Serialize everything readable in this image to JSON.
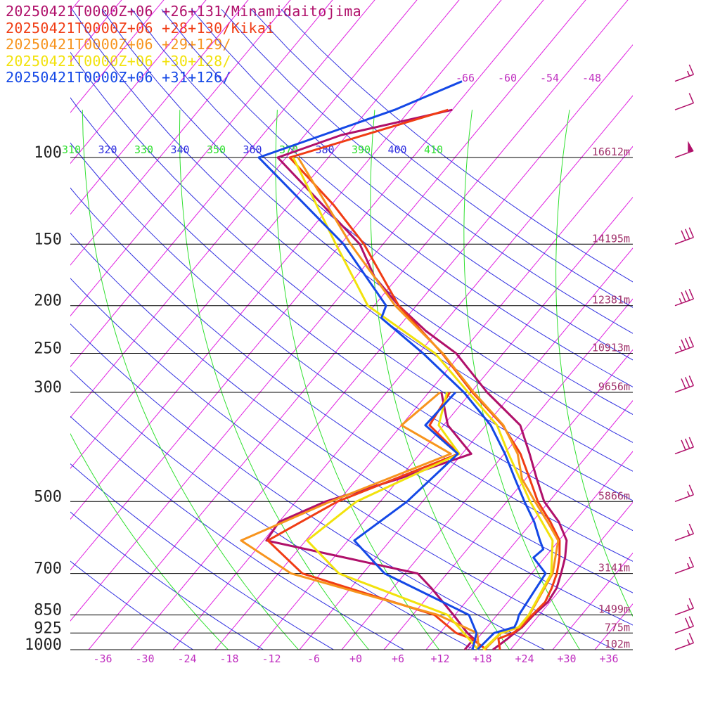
{
  "legend": [
    {
      "label": "20250421T0000Z+06 +26+131/Minamidaitojima",
      "color": "#b0106a"
    },
    {
      "label": "20250421T0000Z+06 +28+130/Kikai",
      "color": "#f03c14"
    },
    {
      "label": "20250421T0000Z+06 +29+129/",
      "color": "#f7941d"
    },
    {
      "label": "20250421T0000Z+06 +30+128/",
      "color": "#f2e20c"
    },
    {
      "label": "20250421T0000Z+06 +31+126/",
      "color": "#1448e6"
    }
  ],
  "chart_data": {
    "type": "line",
    "pressure_levels": [
      100,
      150,
      200,
      250,
      300,
      500,
      700,
      850,
      925,
      1000
    ],
    "pressure_labels": [
      "100",
      "150",
      "200",
      "250",
      "300",
      "500",
      "700",
      "850",
      "925",
      "1000"
    ],
    "heights": [
      {
        "p": 100,
        "label": "16612m"
      },
      {
        "p": 150,
        "label": "14195m"
      },
      {
        "p": 200,
        "label": "12381m"
      },
      {
        "p": 250,
        "label": "10913m"
      },
      {
        "p": 300,
        "label": "9656m"
      },
      {
        "p": 500,
        "label": "5866m"
      },
      {
        "p": 700,
        "label": "3141m"
      },
      {
        "p": 850,
        "label": "1499m"
      },
      {
        "p": 925,
        "label": "775m"
      },
      {
        "p": 1000,
        "label": "102m"
      }
    ],
    "temperature_ticks": [
      -36,
      -30,
      -24,
      -18,
      -12,
      -6,
      0,
      6,
      12,
      18,
      24,
      30,
      36
    ],
    "temperature_tick_labels": [
      "-36",
      "-30",
      "-24",
      "-18",
      "-12",
      "-6",
      "+0",
      "+6",
      "+12",
      "+18",
      "+24",
      "+30",
      "+36"
    ],
    "isotherm_labels": [
      "-66",
      "-60",
      "-54",
      "-48"
    ],
    "theta_labels": [
      "310",
      "320",
      "330",
      "340",
      "350",
      "360",
      "370",
      "380",
      "390",
      "400",
      "410"
    ],
    "xlim": [
      -40,
      40
    ],
    "colors": {
      "isotherm": "#e020e0",
      "theta": "#3030e0",
      "theta_e": "#30e030",
      "pressure_line": "#000000",
      "label": "#c030c0",
      "height": "#a0306a"
    },
    "series": [
      {
        "name": "20250421T0000Z+06 +26+131/Minamidaitojima",
        "color": "#b0106a",
        "temperature": [
          [
            1000,
            19.5
          ],
          [
            950,
            20.3
          ],
          [
            925,
            20.6
          ],
          [
            900,
            21.0
          ],
          [
            850,
            21.2
          ],
          [
            800,
            21.7
          ],
          [
            750,
            21.3
          ],
          [
            700,
            20.2
          ],
          [
            650,
            18.9
          ],
          [
            600,
            17.1
          ],
          [
            550,
            13.8
          ],
          [
            500,
            9.3
          ],
          [
            450,
            5.6
          ],
          [
            400,
            1.6
          ],
          [
            350,
            -3.1
          ],
          [
            300,
            -11.7
          ],
          [
            250,
            -20.7
          ],
          [
            225,
            -27.7
          ],
          [
            200,
            -34.5
          ],
          [
            175,
            -41.3
          ],
          [
            150,
            -47.3
          ],
          [
            100,
            -69.2
          ],
          [
            90,
            -62.8
          ],
          [
            80,
            -50.0
          ]
        ],
        "dewpoint": [
          [
            1000,
            15.5
          ],
          [
            950,
            15.5
          ],
          [
            925,
            13.9
          ],
          [
            850,
            9.8
          ],
          [
            750,
            3.5
          ],
          [
            700,
            -0.2
          ],
          [
            600,
            -25.6
          ],
          [
            550,
            -26.0
          ],
          [
            500,
            -21.8
          ],
          [
            450,
            -14.1
          ],
          [
            400,
            -6.7
          ],
          [
            350,
            -13.4
          ],
          [
            300,
            -18.2
          ]
        ]
      },
      {
        "name": "20250421T0000Z+06 +28+130/Kikai",
        "color": "#f03c14",
        "temperature": [
          [
            1000,
            20.5
          ],
          [
            950,
            19.0
          ],
          [
            925,
            20.4
          ],
          [
            900,
            20.8
          ],
          [
            850,
            21.0
          ],
          [
            800,
            21.3
          ],
          [
            750,
            20.6
          ],
          [
            700,
            19.6
          ],
          [
            650,
            18.1
          ],
          [
            600,
            16.1
          ],
          [
            550,
            12.6
          ],
          [
            500,
            8.4
          ],
          [
            450,
            4.6
          ],
          [
            400,
            0.3
          ],
          [
            350,
            -5.6
          ],
          [
            300,
            -13.8
          ],
          [
            250,
            -22.7
          ],
          [
            200,
            -34.5
          ],
          [
            150,
            -46.7
          ],
          [
            125,
            -55.6
          ],
          [
            100,
            -67.5
          ],
          [
            80,
            -50.6
          ]
        ],
        "dewpoint": [
          [
            1000,
            18.6
          ],
          [
            950,
            15.2
          ],
          [
            925,
            12.3
          ],
          [
            850,
            7.1
          ],
          [
            700,
            -16.6
          ],
          [
            600,
            -25.4
          ],
          [
            500,
            -20.1
          ],
          [
            400,
            -8.5
          ],
          [
            350,
            -16.0
          ],
          [
            300,
            -17.0
          ]
        ]
      },
      {
        "name": "20250421T0000Z+06 +29+129/",
        "color": "#f7941d",
        "temperature": [
          [
            1000,
            18.3
          ],
          [
            925,
            18.7
          ],
          [
            900,
            20.6
          ],
          [
            850,
            20.6
          ],
          [
            700,
            19.0
          ],
          [
            600,
            15.9
          ],
          [
            550,
            12.2
          ],
          [
            500,
            8.0
          ],
          [
            450,
            3.5
          ],
          [
            400,
            -0.1
          ],
          [
            350,
            -5.5
          ],
          [
            300,
            -13.6
          ],
          [
            250,
            -22.6
          ],
          [
            200,
            -35.0
          ],
          [
            150,
            -48.6
          ],
          [
            100,
            -66.3
          ]
        ],
        "dewpoint": [
          [
            1000,
            17.5
          ],
          [
            925,
            15.3
          ],
          [
            850,
            7.6
          ],
          [
            700,
            -18.2
          ],
          [
            600,
            -29.2
          ],
          [
            500,
            -21.1
          ],
          [
            400,
            -9.6
          ],
          [
            350,
            -20.0
          ],
          [
            300,
            -18.4
          ]
        ]
      },
      {
        "name": "20250421T0000Z+06 +30+128/",
        "color": "#f2e20c",
        "temperature": [
          [
            1000,
            18.1
          ],
          [
            925,
            18.6
          ],
          [
            900,
            20.5
          ],
          [
            850,
            20.5
          ],
          [
            700,
            18.8
          ],
          [
            600,
            15.1
          ],
          [
            550,
            11.4
          ],
          [
            500,
            7.3
          ],
          [
            450,
            3.2
          ],
          [
            400,
            -1.4
          ],
          [
            350,
            -6.4
          ],
          [
            300,
            -14.4
          ],
          [
            250,
            -23.7
          ],
          [
            200,
            -38.9
          ],
          [
            150,
            -50.7
          ],
          [
            100,
            -67.0
          ]
        ],
        "dewpoint": [
          [
            1000,
            17.4
          ],
          [
            925,
            13.4
          ],
          [
            850,
            9.0
          ],
          [
            700,
            -11.4
          ],
          [
            600,
            -19.8
          ],
          [
            500,
            -17.4
          ],
          [
            400,
            -8.4
          ],
          [
            350,
            -14.7
          ],
          [
            300,
            -17.4
          ]
        ]
      },
      {
        "name": "20250421T0000Z+06 +31+126/",
        "color": "#1448e6",
        "temperature": [
          [
            1000,
            17.3
          ],
          [
            925,
            17.7
          ],
          [
            900,
            19.9
          ],
          [
            875,
            19.6
          ],
          [
            850,
            19.1
          ],
          [
            700,
            18.0
          ],
          [
            650,
            14.4
          ],
          [
            625,
            14.8
          ],
          [
            600,
            13.3
          ],
          [
            550,
            10.3
          ],
          [
            500,
            6.5
          ],
          [
            450,
            2.5
          ],
          [
            400,
            -1.9
          ],
          [
            350,
            -7.3
          ],
          [
            300,
            -15.0
          ],
          [
            250,
            -25.4
          ],
          [
            212,
            -35.5
          ],
          [
            200,
            -36.3
          ],
          [
            150,
            -49.6
          ],
          [
            100,
            -71.9
          ],
          [
            80,
            -58.2
          ],
          [
            70,
            -52.0
          ]
        ],
        "dewpoint": [
          [
            1000,
            16.6
          ],
          [
            925,
            15.2
          ],
          [
            850,
            12.0
          ],
          [
            700,
            -4.9
          ],
          [
            600,
            -13.1
          ],
          [
            500,
            -10.2
          ],
          [
            400,
            -8.6
          ],
          [
            350,
            -16.6
          ],
          [
            300,
            -16.2
          ]
        ]
      }
    ],
    "wind_barbs": [
      {
        "p": 70,
        "speed": 15,
        "color": "#b0106a"
      },
      {
        "p": 80,
        "speed": 10,
        "color": "#b0106a"
      },
      {
        "p": 100,
        "speed": 50,
        "color": "#b0106a"
      },
      {
        "p": 150,
        "speed": 30,
        "color": "#b0106a"
      },
      {
        "p": 200,
        "speed": 35,
        "color": "#b0106a"
      },
      {
        "p": 250,
        "speed": 35,
        "color": "#b0106a"
      },
      {
        "p": 300,
        "speed": 30,
        "color": "#b0106a"
      },
      {
        "p": 400,
        "speed": 30,
        "color": "#b0106a"
      },
      {
        "p": 500,
        "speed": 15,
        "color": "#b0106a"
      },
      {
        "p": 600,
        "speed": 15,
        "color": "#b0106a"
      },
      {
        "p": 700,
        "speed": 15,
        "color": "#b0106a"
      },
      {
        "p": 850,
        "speed": 15,
        "color": "#b0106a"
      },
      {
        "p": 925,
        "speed": 20,
        "color": "#b0106a"
      },
      {
        "p": 1000,
        "speed": 15,
        "color": "#b0106a"
      }
    ]
  }
}
